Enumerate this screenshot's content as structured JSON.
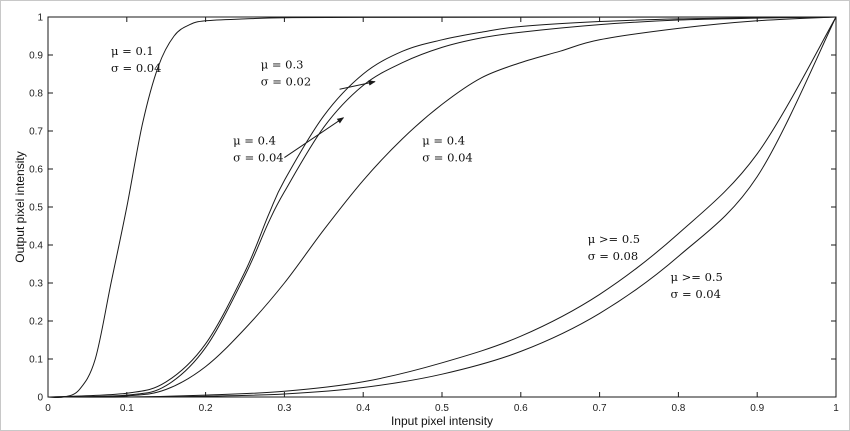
{
  "chart_data": {
    "type": "line",
    "title": "",
    "xlabel": "Input pixel intensity",
    "ylabel": "Output pixel intensity",
    "xlim": [
      0,
      1
    ],
    "ylim": [
      0,
      1
    ],
    "x_ticks": [
      "0",
      "0.1",
      "0.2",
      "0.3",
      "0.4",
      "0.5",
      "0.6",
      "0.7",
      "0.8",
      "0.9",
      "1"
    ],
    "y_ticks": [
      "0",
      "0.1",
      "0.2",
      "0.3",
      "0.4",
      "0.5",
      "0.6",
      "0.7",
      "0.8",
      "0.9",
      "1"
    ],
    "grid": false,
    "line_color": "#1a1a1a",
    "series": [
      {
        "x": [
          0,
          0.02,
          0.04,
          0.06,
          0.08,
          0.1,
          0.12,
          0.14,
          0.16,
          0.18,
          0.2,
          0.25,
          0.3,
          0.4,
          1
        ],
        "y": [
          0,
          0.0,
          0.02,
          0.1,
          0.3,
          0.5,
          0.72,
          0.87,
          0.95,
          0.98,
          0.99,
          0.995,
          0.998,
          0.999,
          1
        ]
      },
      {
        "x": [
          0,
          0.1,
          0.15,
          0.2,
          0.25,
          0.28,
          0.3,
          0.35,
          0.4,
          0.45,
          0.5,
          0.55,
          0.6,
          0.7,
          0.8,
          0.9,
          1
        ],
        "y": [
          0,
          0.01,
          0.04,
          0.14,
          0.33,
          0.48,
          0.57,
          0.74,
          0.85,
          0.91,
          0.94,
          0.96,
          0.975,
          0.988,
          0.995,
          0.998,
          1
        ]
      },
      {
        "x": [
          0,
          0.1,
          0.15,
          0.2,
          0.25,
          0.28,
          0.3,
          0.35,
          0.4,
          0.45,
          0.5,
          0.55,
          0.6,
          0.7,
          0.8,
          0.9,
          1
        ],
        "y": [
          0,
          0.005,
          0.03,
          0.13,
          0.32,
          0.46,
          0.54,
          0.71,
          0.82,
          0.88,
          0.92,
          0.945,
          0.96,
          0.98,
          0.992,
          0.997,
          1
        ]
      },
      {
        "x": [
          0,
          0.1,
          0.15,
          0.2,
          0.25,
          0.3,
          0.35,
          0.4,
          0.45,
          0.5,
          0.55,
          0.6,
          0.65,
          0.7,
          0.8,
          0.9,
          1
        ],
        "y": [
          0,
          0.003,
          0.02,
          0.08,
          0.18,
          0.3,
          0.44,
          0.57,
          0.68,
          0.77,
          0.84,
          0.88,
          0.91,
          0.94,
          0.97,
          0.99,
          1
        ]
      },
      {
        "x": [
          0,
          0.1,
          0.2,
          0.3,
          0.4,
          0.5,
          0.6,
          0.7,
          0.8,
          0.9,
          1
        ],
        "y": [
          0,
          0.0,
          0.005,
          0.015,
          0.04,
          0.09,
          0.16,
          0.27,
          0.43,
          0.64,
          1
        ]
      },
      {
        "x": [
          0,
          0.1,
          0.2,
          0.3,
          0.4,
          0.5,
          0.6,
          0.7,
          0.8,
          0.9,
          1
        ],
        "y": [
          0,
          0.0,
          0.002,
          0.008,
          0.025,
          0.06,
          0.12,
          0.22,
          0.37,
          0.58,
          1
        ]
      }
    ],
    "annotations": [
      {
        "lines": [
          "μ = 0.1",
          "σ = 0.04"
        ],
        "x": 0.08,
        "y": 0.9,
        "arrow": false
      },
      {
        "lines": [
          "μ = 0.3",
          "σ = 0.02"
        ],
        "x": 0.27,
        "y": 0.865,
        "arrow": true,
        "arrow_from": [
          0.37,
          0.81
        ],
        "arrow_to": [
          0.415,
          0.83
        ]
      },
      {
        "lines": [
          "μ = 0.4",
          "σ = 0.04"
        ],
        "x": 0.235,
        "y": 0.665,
        "arrow": true,
        "arrow_from": [
          0.3,
          0.63
        ],
        "arrow_to": [
          0.375,
          0.735
        ]
      },
      {
        "lines": [
          "μ = 0.4",
          "σ = 0.04"
        ],
        "x": 0.475,
        "y": 0.665,
        "arrow": false
      },
      {
        "lines": [
          "μ >= 0.5",
          "σ = 0.08"
        ],
        "x": 0.685,
        "y": 0.405,
        "arrow": false
      },
      {
        "lines": [
          "μ >= 0.5",
          "σ = 0.04"
        ],
        "x": 0.79,
        "y": 0.305,
        "arrow": false
      }
    ]
  }
}
